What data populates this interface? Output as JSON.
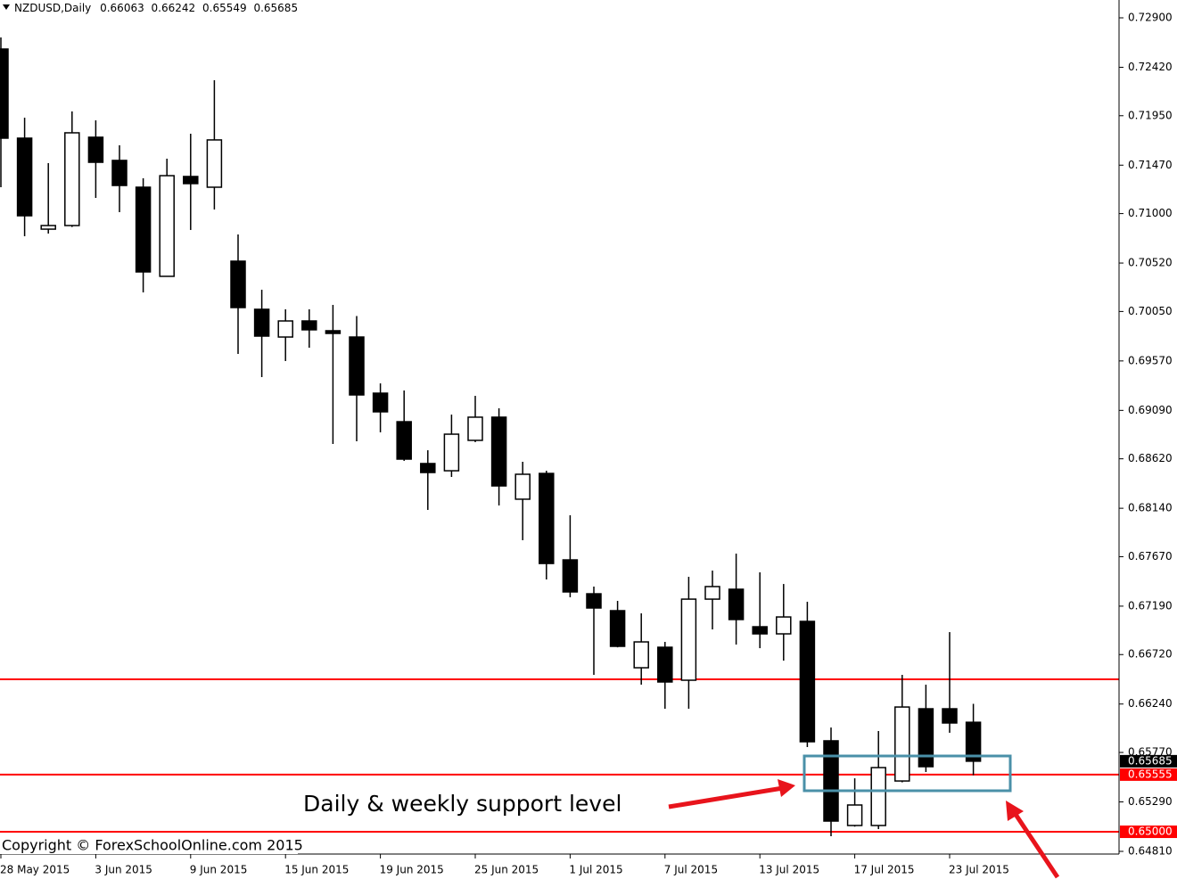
{
  "chart_data": {
    "type": "candlestick",
    "title": "NZDUSD,Daily",
    "categories": [
      "28 May 2015",
      null,
      null,
      null,
      "3 Jun 2015",
      null,
      null,
      null,
      "9 Jun 2015",
      null,
      null,
      null,
      "15 Jun 2015",
      null,
      null,
      null,
      "19 Jun 2015",
      null,
      null,
      null,
      "25 Jun 2015",
      null,
      null,
      null,
      "1 Jul 2015",
      null,
      null,
      null,
      "7 Jul 2015",
      null,
      null,
      null,
      "13 Jul 2015",
      null,
      null,
      null,
      "17 Jul 2015",
      null,
      null,
      null,
      "23 Jul 2015",
      null
    ],
    "open": [
      0.72597,
      0.71732,
      0.70849,
      0.70884,
      0.71741,
      0.71516,
      0.71256,
      0.70391,
      0.7136,
      0.71256,
      0.70538,
      0.70071,
      0.69802,
      0.69958,
      0.69863,
      0.69802,
      0.69257,
      0.6898,
      0.68574,
      0.68504,
      0.68799,
      0.69024,
      0.68228,
      0.68478,
      0.67639,
      0.6731,
      0.67146,
      0.66592,
      0.66791,
      0.66471,
      0.67258,
      0.67354,
      0.6699,
      0.66921,
      0.67042,
      0.65883,
      0.65061,
      0.65061,
      0.65493,
      0.66194,
      0.66194,
      0.66063
    ],
    "high": [
      0.7271,
      0.71931,
      0.7149,
      0.71991,
      0.71905,
      0.71663,
      0.71343,
      0.71533,
      0.71775,
      0.72294,
      0.70797,
      0.70261,
      0.70071,
      0.70071,
      0.70114,
      0.70006,
      0.69352,
      0.69283,
      0.68703,
      0.69049,
      0.69231,
      0.6911,
      0.68591,
      0.68504,
      0.68072,
      0.6738,
      0.67241,
      0.6712,
      0.66843,
      0.67475,
      0.67535,
      0.677,
      0.67518,
      0.67405,
      0.67233,
      0.66012,
      0.65519,
      0.65978,
      0.66523,
      0.66428,
      0.66938,
      0.66242
    ],
    "low": [
      0.71256,
      0.7078,
      0.70806,
      0.7087,
      0.71152,
      0.71014,
      0.70235,
      0.70391,
      0.70841,
      0.7104,
      0.69638,
      0.69413,
      0.69569,
      0.69698,
      0.68764,
      0.6879,
      0.68877,
      0.686,
      0.68124,
      0.68444,
      0.68782,
      0.68167,
      0.6783,
      0.67449,
      0.67276,
      0.66523,
      0.6679,
      0.66428,
      0.66194,
      0.66194,
      0.66964,
      0.66817,
      0.66782,
      0.66661,
      0.65822,
      0.64957,
      0.6505,
      0.65026,
      0.6548,
      0.6558,
      0.65961,
      0.65549
    ],
    "close": [
      0.71732,
      0.70979,
      0.70884,
      0.71784,
      0.71498,
      0.71273,
      0.70434,
      0.71368,
      0.71291,
      0.71715,
      0.70088,
      0.69811,
      0.69958,
      0.69872,
      0.69837,
      0.6924,
      0.69076,
      0.68617,
      0.68487,
      0.68859,
      0.69024,
      0.68357,
      0.6847,
      0.67604,
      0.67328,
      0.67172,
      0.668,
      0.66843,
      0.66454,
      0.67258,
      0.6738,
      0.6706,
      0.66921,
      0.67085,
      0.65874,
      0.65104,
      0.6526,
      0.65623,
      0.66211,
      0.65632,
      0.66056,
      0.65685
    ],
    "up_color": "#ffffff",
    "down_color": "#000000",
    "ylim": [
      0.64784,
      0.73073
    ],
    "yticks": [
      {
        "value": 0.729,
        "label": "0.72900"
      },
      {
        "value": 0.7242,
        "label": "0.72420"
      },
      {
        "value": 0.7195,
        "label": "0.71950"
      },
      {
        "value": 0.7147,
        "label": "0.71470"
      },
      {
        "value": 0.71,
        "label": "0.71000"
      },
      {
        "value": 0.7052,
        "label": "0.70520"
      },
      {
        "value": 0.7005,
        "label": "0.70050"
      },
      {
        "value": 0.6957,
        "label": "0.69570"
      },
      {
        "value": 0.6909,
        "label": "0.69090"
      },
      {
        "value": 0.6862,
        "label": "0.68620"
      },
      {
        "value": 0.6814,
        "label": "0.68140"
      },
      {
        "value": 0.6767,
        "label": "0.67670"
      },
      {
        "value": 0.6719,
        "label": "0.67190"
      },
      {
        "value": 0.6672,
        "label": "0.66720"
      },
      {
        "value": 0.6624,
        "label": "0.66240"
      },
      {
        "value": 0.6577,
        "label": "0.65770"
      },
      {
        "value": 0.6529,
        "label": "0.65290"
      },
      {
        "value": 0.6481,
        "label": "0.64810"
      }
    ],
    "hlines": [
      0.6648,
      {
        "value": 0.65555,
        "label": "0.65555"
      },
      {
        "value": 0.65,
        "label": "0.65000"
      }
    ],
    "hline_color": "#ff0000",
    "annotation": "Daily & weekly support level",
    "copyright": "Copyright © ForexSchoolOnline.com 2015"
  }
}
